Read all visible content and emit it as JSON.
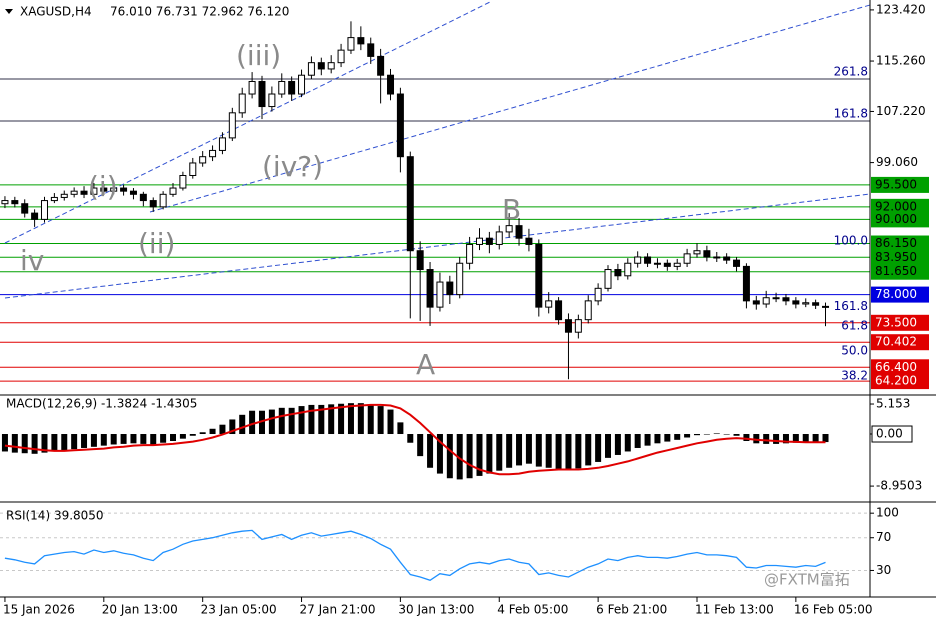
{
  "chart_data": [
    {
      "type": "candlestick",
      "title": "XAGUSD,H4",
      "header": "76.010 76.731 72.962 76.120",
      "xlim": [
        -0.5,
        87.5
      ],
      "xticks": [
        {
          "value": 0,
          "label": "15 Jan 2026"
        },
        {
          "value": 10,
          "label": "20 Jan 13:00"
        },
        {
          "value": 20,
          "label": "23 Jan 05:00"
        },
        {
          "value": 30,
          "label": "27 Jan 21:00"
        },
        {
          "value": 40,
          "label": "30 Jan 13:00"
        },
        {
          "value": 50,
          "label": "4 Feb 05:00"
        },
        {
          "value": 60,
          "label": "6 Feb 21:00"
        },
        {
          "value": 70,
          "label": "11 Feb 13:00"
        },
        {
          "value": 80,
          "label": "16 Feb 05:00"
        }
      ],
      "ylim": [
        62.3,
        125.0
      ],
      "yticks": [
        {
          "value": 123.42,
          "label": "123.420"
        },
        {
          "value": 115.26,
          "label": "115.260"
        },
        {
          "value": 107.22,
          "label": "107.220"
        },
        {
          "value": 99.06,
          "label": "99.060"
        }
      ],
      "up_color": "#ffffff",
      "down_color": "#000000",
      "wick_color": "#000000",
      "open": [
        92.5,
        93,
        92.5,
        91,
        90,
        93,
        93.5,
        94,
        94.5,
        94,
        95,
        94.5,
        95,
        94.5,
        94,
        93,
        92,
        94,
        95,
        97,
        99,
        100,
        101,
        103,
        107,
        110,
        112,
        108,
        110,
        112,
        110,
        113,
        115,
        114,
        115,
        117,
        119,
        118,
        116,
        113,
        110,
        100,
        85,
        82,
        76,
        80,
        78,
        83,
        86,
        87,
        86,
        88,
        89,
        87,
        86,
        76,
        77,
        74,
        72,
        74,
        77,
        79,
        82,
        81,
        83,
        84,
        83,
        83,
        82.5,
        83,
        84.5,
        85,
        84,
        84,
        83.5,
        82.5,
        77,
        76.5,
        77.5,
        77.5,
        77,
        76.5,
        76.7,
        76.01
      ],
      "high": [
        93.7,
        93.6,
        93.2,
        91.6,
        93.6,
        94.2,
        94.6,
        95.1,
        95.3,
        95.8,
        95.6,
        95.7,
        95.5,
        95.0,
        94.4,
        93.5,
        94.5,
        95.8,
        97.6,
        99.8,
        100.9,
        101.8,
        103.9,
        107.8,
        111.0,
        113.5,
        112.9,
        111.2,
        113.3,
        112.8,
        113.9,
        116.0,
        115.8,
        116.2,
        118.0,
        121.6,
        120.8,
        119.0,
        117.2,
        114.0,
        111.0,
        100.8,
        86.5,
        83.2,
        81.5,
        81.0,
        84.0,
        87.2,
        88.6,
        88.0,
        89.0,
        91.0,
        90.2,
        88.5,
        86.8,
        78.4,
        77.6,
        75.0,
        74.8,
        77.9,
        79.8,
        82.7,
        82.9,
        83.8,
        84.9,
        84.6,
        83.8,
        83.6,
        83.7,
        85.3,
        86.2,
        85.8,
        84.8,
        84.6,
        84.0,
        83.0,
        77.8,
        78.6,
        78.3,
        78.1,
        77.6,
        77.4,
        77.2,
        76.73
      ],
      "low": [
        91.8,
        91.9,
        90.3,
        88.8,
        89.5,
        92.6,
        93.0,
        93.5,
        93.4,
        93.6,
        93.9,
        94.0,
        93.8,
        93.2,
        92.1,
        91.2,
        91.6,
        93.6,
        94.6,
        96.5,
        98.4,
        99.3,
        100.4,
        102.5,
        106.2,
        109.3,
        106.0,
        107.2,
        109.4,
        108.9,
        109.5,
        112.4,
        113.0,
        113.3,
        114.3,
        116.4,
        117.0,
        114.8,
        108.5,
        109.0,
        97.5,
        74.2,
        73.8,
        73.0,
        75.3,
        76.5,
        77.4,
        82.0,
        85.1,
        84.6,
        85.2,
        87.1,
        85.8,
        84.9,
        74.5,
        75.0,
        73.2,
        64.5,
        71.0,
        73.4,
        76.3,
        78.5,
        80.3,
        80.4,
        82.3,
        82.4,
        82.2,
        81.8,
        81.9,
        82.4,
        83.9,
        83.3,
        83.2,
        82.9,
        81.7,
        75.8,
        75.6,
        75.9,
        76.8,
        76.3,
        75.8,
        76.0,
        75.7,
        72.96
      ],
      "close": [
        93,
        92.5,
        91,
        90,
        93,
        93.5,
        94,
        94.5,
        94,
        95,
        94.5,
        95,
        94.5,
        94,
        93,
        92,
        94,
        95,
        97,
        99,
        100,
        101,
        103,
        107,
        110,
        112,
        108,
        110,
        112,
        110,
        113,
        115,
        114,
        115,
        117,
        119,
        118,
        116,
        113,
        110,
        100,
        85,
        82,
        76,
        80,
        78,
        83,
        86,
        87,
        86,
        88,
        89,
        87,
        86,
        76,
        77,
        74,
        72,
        74,
        77,
        79,
        82,
        81,
        83,
        84,
        83,
        83,
        82.5,
        83,
        84.5,
        85,
        84,
        84,
        83.5,
        82.5,
        77,
        76.5,
        77.5,
        77.5,
        77,
        76.5,
        76.7,
        76.3,
        76.12
      ],
      "levels": [
        {
          "value": 95.5,
          "label": "95.500",
          "color": "#00a000",
          "label_color": "#000000"
        },
        {
          "value": 92.0,
          "label": "92.000",
          "color": "#00a000",
          "label_color": "#000000"
        },
        {
          "value": 90.0,
          "label": "90.000",
          "color": "#00a000",
          "label_color": "#000000"
        },
        {
          "value": 86.15,
          "label": "86.150",
          "color": "#00a000",
          "label_color": "#000000"
        },
        {
          "value": 83.95,
          "label": "83.950",
          "color": "#00a000",
          "label_color": "#000000"
        },
        {
          "value": 81.65,
          "label": "81.650",
          "color": "#00a000",
          "label_color": "#000000"
        },
        {
          "value": 78.0,
          "label": "78.000",
          "color": "#0000e0",
          "label_color": "#ffffff"
        },
        {
          "value": 73.5,
          "label": "73.500",
          "color": "#e00000",
          "label_color": "#ffffff"
        },
        {
          "value": 70.402,
          "label": "70.402",
          "color": "#e00000",
          "label_color": "#ffffff"
        },
        {
          "value": 66.4,
          "label": "66.400",
          "color": "#e00000",
          "label_color": "#ffffff"
        },
        {
          "value": 64.2,
          "label": "64.200",
          "color": "#e00000",
          "label_color": "#ffffff"
        }
      ],
      "fib_levels": [
        {
          "value": 112.4,
          "label": "261.8",
          "line": true
        },
        {
          "value": 105.7,
          "label": "161.8",
          "line": true
        },
        {
          "value": 85.4,
          "label": "100.0",
          "line": false
        },
        {
          "value": 75.0,
          "label": "161.8",
          "line": false
        },
        {
          "value": 71.9,
          "label": "61.8",
          "line": false
        },
        {
          "value": 67.9,
          "label": "50.0",
          "line": false
        },
        {
          "value": 63.9,
          "label": "38.2",
          "line": false
        }
      ],
      "fib_color": "#00008b",
      "wave_labels": [
        "(iii)",
        "(i)",
        "(ii)",
        "iv",
        "(iv?)",
        "B",
        "A"
      ]
    },
    {
      "type": "macd",
      "title": "MACD(12,26,9) -1.3824 -1.4305",
      "xlim": [
        -0.5,
        87.5
      ],
      "ylim": [
        -11.34,
        6.36
      ],
      "yticks": [
        5.153,
        {
          "value": 0,
          "label": "0.00"
        },
        -8.9503
      ],
      "histogram_color": "#000000",
      "signal_color": "#e00000",
      "histogram": [
        -3,
        -3.2,
        -3.3,
        -3.4,
        -3.2,
        -3,
        -2.8,
        -2.6,
        -2.4,
        -2.2,
        -2,
        -1.8,
        -1.7,
        -1.6,
        -1.7,
        -1.8,
        -1.5,
        -1.2,
        -0.8,
        -0.3,
        0.3,
        0.9,
        1.6,
        2.5,
        3.3,
        4,
        4,
        4.2,
        4.5,
        4.5,
        4.8,
        5,
        5,
        5.1,
        5.2,
        5.3,
        5.3,
        5.1,
        4.8,
        4.2,
        2,
        -1.5,
        -3.8,
        -5.8,
        -6.8,
        -7.6,
        -7.8,
        -7.6,
        -7.2,
        -6.8,
        -6.3,
        -5.8,
        -5.4,
        -5.1,
        -5.6,
        -5.8,
        -6,
        -6.2,
        -5.9,
        -5.4,
        -4.8,
        -4.1,
        -3.6,
        -3,
        -2.4,
        -2,
        -1.6,
        -1.3,
        -1,
        -0.6,
        -0.2,
        0,
        0.1,
        0,
        -0.3,
        -1.2,
        -1.6,
        -1.7,
        -1.7,
        -1.6,
        -1.5,
        -1.5,
        -1.4,
        -1.3824
      ],
      "signal": [
        -2,
        -2.2,
        -2.4,
        -2.6,
        -2.8,
        -2.9,
        -2.9,
        -2.8,
        -2.7,
        -2.6,
        -2.5,
        -2.3,
        -2.2,
        -2,
        -1.9,
        -1.9,
        -1.8,
        -1.7,
        -1.5,
        -1.3,
        -1,
        -0.6,
        -0.1,
        0.5,
        1.1,
        1.7,
        2.2,
        2.7,
        3.1,
        3.4,
        3.7,
        4,
        4.2,
        4.4,
        4.6,
        4.8,
        4.9,
        5,
        5,
        4.9,
        4.4,
        3.3,
        1.9,
        0.3,
        -1.3,
        -2.8,
        -4.2,
        -5.3,
        -6.1,
        -6.6,
        -6.9,
        -6.9,
        -6.8,
        -6.5,
        -6.3,
        -6.2,
        -6.1,
        -6.1,
        -6.1,
        -6,
        -5.8,
        -5.5,
        -5.1,
        -4.7,
        -4.2,
        -3.7,
        -3.2,
        -2.8,
        -2.4,
        -2,
        -1.6,
        -1.3,
        -1,
        -0.8,
        -0.7,
        -0.8,
        -1,
        -1.1,
        -1.2,
        -1.3,
        -1.35,
        -1.4,
        -1.42,
        -1.4305
      ]
    },
    {
      "type": "line",
      "title": "RSI(14) 39.8050",
      "xlim": [
        -0.5,
        87.5
      ],
      "ylim": [
        0,
        110
      ],
      "yticks": [
        100,
        70,
        30
      ],
      "grid": true,
      "color": "#1e90ff",
      "values": [
        45,
        43,
        40,
        38,
        48,
        50,
        52,
        53,
        50,
        55,
        52,
        54,
        51,
        49,
        45,
        42,
        52,
        56,
        62,
        66,
        68,
        70,
        73,
        76,
        78,
        79,
        68,
        71,
        74,
        68,
        73,
        76,
        72,
        74,
        76,
        78,
        74,
        69,
        62,
        56,
        40,
        25,
        22,
        18,
        26,
        24,
        32,
        38,
        40,
        38,
        42,
        44,
        40,
        38,
        25,
        27,
        24,
        22,
        28,
        34,
        38,
        44,
        42,
        46,
        48,
        46,
        46,
        45,
        47,
        50,
        52,
        49,
        49,
        48,
        46,
        34,
        33,
        36,
        36,
        35,
        34,
        36,
        35,
        39.805
      ]
    },
    {
      "watermark": "@FXTM富拓"
    }
  ]
}
